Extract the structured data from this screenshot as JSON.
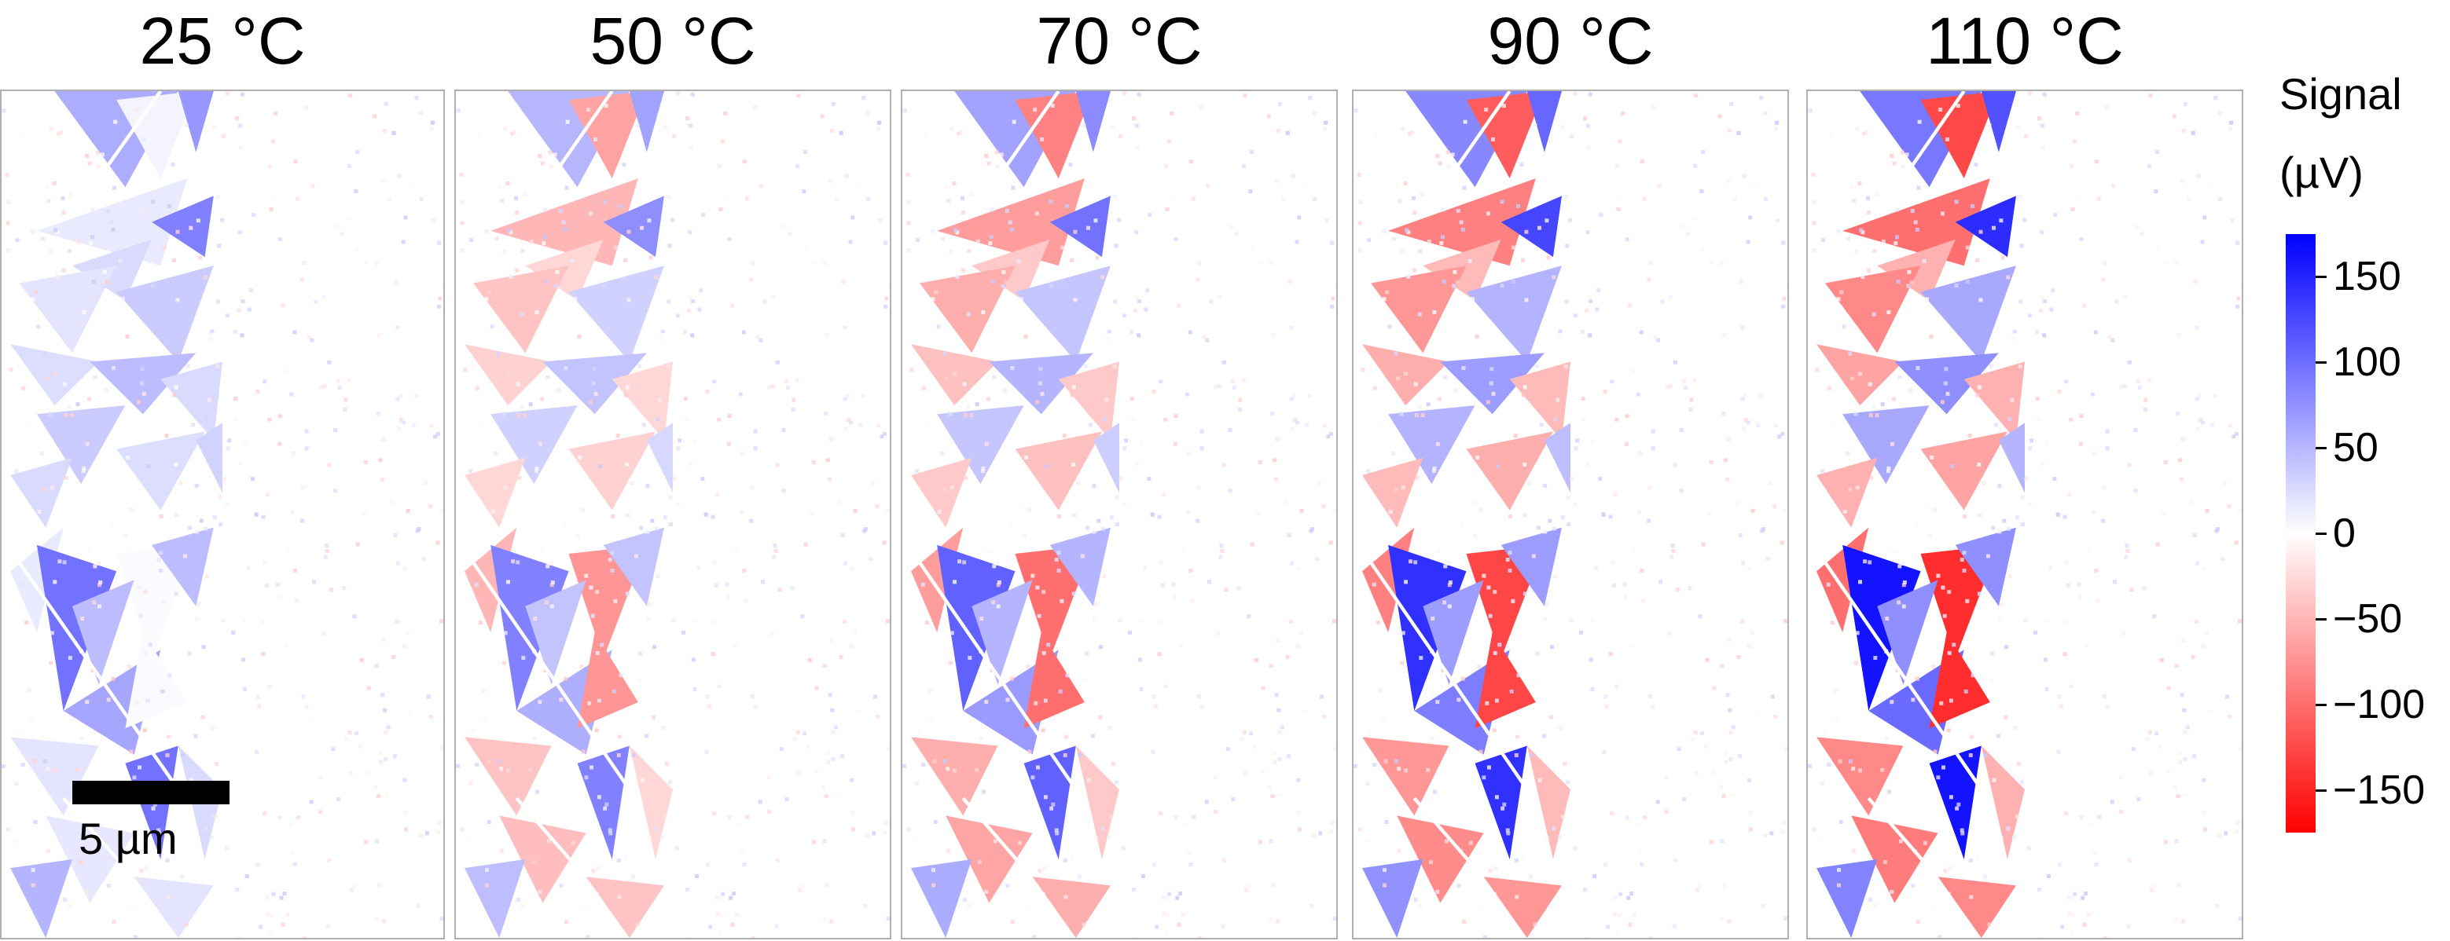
{
  "panels": [
    {
      "title": "25 °C",
      "intensity": 0.28,
      "bias": 0.55
    },
    {
      "title": "50 °C",
      "intensity": 0.52,
      "bias": 0.0
    },
    {
      "title": "70 °C",
      "intensity": 0.68,
      "bias": -0.05
    },
    {
      "title": "90 °C",
      "intensity": 0.88,
      "bias": -0.05
    },
    {
      "title": "110 °C",
      "intensity": 1.0,
      "bias": -0.05
    }
  ],
  "scale_bar": {
    "label": "5 µm"
  },
  "colorbar": {
    "title_line1": "Signal",
    "title_line2": "(µV)",
    "min": -175,
    "max": 175,
    "ticks": [
      "150",
      "100",
      "50",
      "0",
      "−50",
      "−100",
      "−150"
    ],
    "tick_values": [
      150,
      100,
      50,
      0,
      -50,
      -100,
      -150
    ],
    "color_high": "#0000ff",
    "color_mid": "#ffffff",
    "color_low": "#ff0000"
  }
}
